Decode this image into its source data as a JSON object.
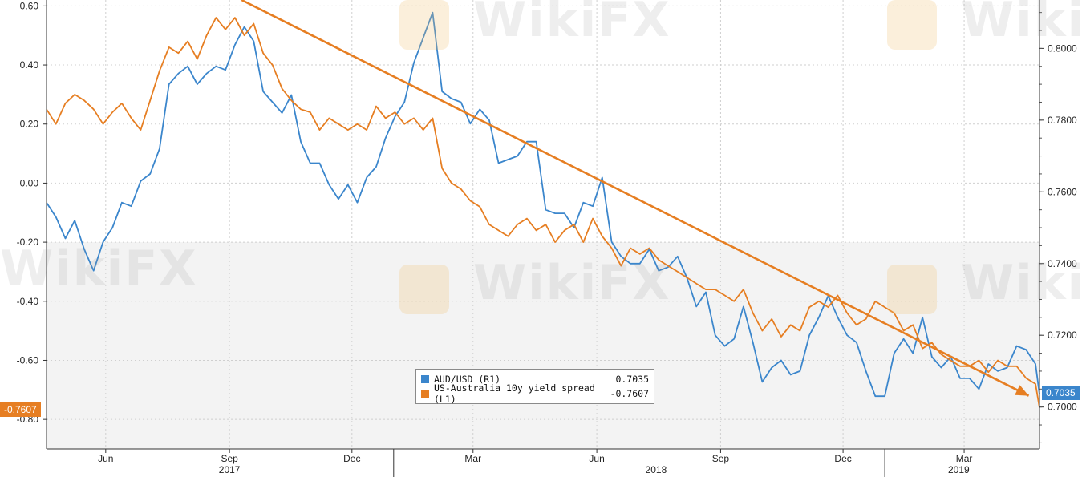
{
  "colors": {
    "aud_usd": "#3b86cc",
    "spread": "#e67e22",
    "trend": "#e67e22",
    "panel_bg": "#ffffff",
    "lower_band": "#f3f3f3",
    "grid": "#cfcfcf"
  },
  "watermark": {
    "text": "WikiFX",
    "icon": "wikifx-logo-icon"
  },
  "legend": {
    "items": [
      {
        "label": "AUD/USD (R1)",
        "value": "0.7035",
        "color": "#3b86cc"
      },
      {
        "label": "US-Australia 10y yield spread (L1)",
        "value": "-0.7607",
        "color": "#e67e22"
      }
    ]
  },
  "badges": {
    "left": "-0.7607",
    "right": "0.7035"
  },
  "chart_data": {
    "type": "line",
    "x_unit": "month",
    "x_range": [
      "2017-04-18",
      "2019-04-26"
    ],
    "x_ticks": [
      {
        "date": "2017-06-01",
        "label": "Jun"
      },
      {
        "date": "2017-09-01",
        "label": "Sep"
      },
      {
        "date": "2017-12-01",
        "label": "Dec"
      },
      {
        "date": "2018-03-01",
        "label": "Mar"
      },
      {
        "date": "2018-06-01",
        "label": "Jun"
      },
      {
        "date": "2018-09-01",
        "label": "Sep"
      },
      {
        "date": "2018-12-01",
        "label": "Dec"
      },
      {
        "date": "2019-03-01",
        "label": "Mar"
      }
    ],
    "years": [
      {
        "label": "2017",
        "date": "2017-09-01"
      },
      {
        "label": "2018",
        "date": "2018-07-15"
      },
      {
        "label": "2019",
        "date": "2019-02-25"
      }
    ],
    "year_separators": [
      "2018-01-01",
      "2019-01-01"
    ],
    "y_left": {
      "range": [
        -0.9,
        0.62
      ],
      "ticks": [
        0.6,
        0.4,
        0.2,
        0.0,
        -0.2,
        -0.4,
        -0.6,
        -0.8
      ],
      "tick_labels": [
        "0.60",
        "0.40",
        "0.20",
        "0.00",
        "-0.20",
        "-0.40",
        "-0.60",
        "-0.80"
      ]
    },
    "y_right": {
      "range": [
        0.6883,
        0.8135
      ],
      "ticks": [
        0.8,
        0.78,
        0.76,
        0.74,
        0.72,
        0.7
      ],
      "tick_labels": [
        "0.8000",
        "0.7800",
        "0.7600",
        "0.7400",
        "0.7200",
        "0.7000"
      ]
    },
    "series": [
      {
        "name": "AUD/USD (R1)",
        "axis": "right",
        "x": [
          "2017-04-18",
          "2017-04-25",
          "2017-05-02",
          "2017-05-09",
          "2017-05-16",
          "2017-05-23",
          "2017-05-30",
          "2017-06-06",
          "2017-06-13",
          "2017-06-20",
          "2017-06-27",
          "2017-07-04",
          "2017-07-11",
          "2017-07-18",
          "2017-07-25",
          "2017-08-01",
          "2017-08-08",
          "2017-08-15",
          "2017-08-22",
          "2017-08-29",
          "2017-09-05",
          "2017-09-12",
          "2017-09-19",
          "2017-09-26",
          "2017-10-03",
          "2017-10-10",
          "2017-10-17",
          "2017-10-24",
          "2017-10-31",
          "2017-11-07",
          "2017-11-14",
          "2017-11-21",
          "2017-11-28",
          "2017-12-05",
          "2017-12-12",
          "2017-12-19",
          "2017-12-26",
          "2018-01-02",
          "2018-01-09",
          "2018-01-16",
          "2018-01-23",
          "2018-01-30",
          "2018-02-06",
          "2018-02-13",
          "2018-02-20",
          "2018-02-27",
          "2018-03-06",
          "2018-03-13",
          "2018-03-20",
          "2018-03-27",
          "2018-04-03",
          "2018-04-10",
          "2018-04-17",
          "2018-04-24",
          "2018-05-01",
          "2018-05-08",
          "2018-05-15",
          "2018-05-22",
          "2018-05-29",
          "2018-06-05",
          "2018-06-12",
          "2018-06-19",
          "2018-06-26",
          "2018-07-03",
          "2018-07-10",
          "2018-07-17",
          "2018-07-24",
          "2018-07-31",
          "2018-08-07",
          "2018-08-14",
          "2018-08-21",
          "2018-08-28",
          "2018-09-04",
          "2018-09-11",
          "2018-09-18",
          "2018-09-25",
          "2018-10-02",
          "2018-10-09",
          "2018-10-16",
          "2018-10-23",
          "2018-10-30",
          "2018-11-06",
          "2018-11-13",
          "2018-11-20",
          "2018-11-27",
          "2018-12-04",
          "2018-12-11",
          "2018-12-18",
          "2018-12-25",
          "2019-01-01",
          "2019-01-08",
          "2019-01-15",
          "2019-01-22",
          "2019-01-29",
          "2019-02-05",
          "2019-02-12",
          "2019-02-19",
          "2019-02-26",
          "2019-03-05",
          "2019-03-12",
          "2019-03-19",
          "2019-03-26",
          "2019-04-02",
          "2019-04-09",
          "2019-04-16",
          "2019-04-23",
          "2019-04-26"
        ],
        "values": [
          0.757,
          0.753,
          0.747,
          0.752,
          0.744,
          0.738,
          0.746,
          0.75,
          0.757,
          0.756,
          0.763,
          0.765,
          0.772,
          0.79,
          0.793,
          0.795,
          0.79,
          0.793,
          0.795,
          0.794,
          0.801,
          0.806,
          0.802,
          0.788,
          0.785,
          0.782,
          0.787,
          0.774,
          0.768,
          0.768,
          0.762,
          0.758,
          0.762,
          0.757,
          0.764,
          0.767,
          0.775,
          0.781,
          0.785,
          0.796,
          0.803,
          0.81,
          0.788,
          0.786,
          0.785,
          0.779,
          0.783,
          0.78,
          0.768,
          0.769,
          0.77,
          0.774,
          0.774,
          0.755,
          0.754,
          0.754,
          0.75,
          0.757,
          0.756,
          0.764,
          0.746,
          0.742,
          0.74,
          0.74,
          0.744,
          0.738,
          0.739,
          0.742,
          0.736,
          0.728,
          0.732,
          0.72,
          0.717,
          0.719,
          0.728,
          0.718,
          0.707,
          0.711,
          0.713,
          0.709,
          0.71,
          0.72,
          0.725,
          0.731,
          0.725,
          0.72,
          0.718,
          0.71,
          0.703,
          0.703,
          0.715,
          0.719,
          0.715,
          0.725,
          0.714,
          0.711,
          0.714,
          0.708,
          0.708,
          0.705,
          0.712,
          0.71,
          0.711,
          0.717,
          0.716,
          0.712,
          0.7035
        ]
      },
      {
        "name": "US-Australia 10y yield spread (L1)",
        "axis": "left",
        "x": [
          "2017-04-18",
          "2017-04-25",
          "2017-05-02",
          "2017-05-09",
          "2017-05-16",
          "2017-05-23",
          "2017-05-30",
          "2017-06-06",
          "2017-06-13",
          "2017-06-20",
          "2017-06-27",
          "2017-07-04",
          "2017-07-11",
          "2017-07-18",
          "2017-07-25",
          "2017-08-01",
          "2017-08-08",
          "2017-08-15",
          "2017-08-22",
          "2017-08-29",
          "2017-09-05",
          "2017-09-12",
          "2017-09-19",
          "2017-09-26",
          "2017-10-03",
          "2017-10-10",
          "2017-10-17",
          "2017-10-24",
          "2017-10-31",
          "2017-11-07",
          "2017-11-14",
          "2017-11-21",
          "2017-11-28",
          "2017-12-05",
          "2017-12-12",
          "2017-12-19",
          "2017-12-26",
          "2018-01-02",
          "2018-01-09",
          "2018-01-16",
          "2018-01-23",
          "2018-01-30",
          "2018-02-06",
          "2018-02-13",
          "2018-02-20",
          "2018-02-27",
          "2018-03-06",
          "2018-03-13",
          "2018-03-20",
          "2018-03-27",
          "2018-04-03",
          "2018-04-10",
          "2018-04-17",
          "2018-04-24",
          "2018-05-01",
          "2018-05-08",
          "2018-05-15",
          "2018-05-22",
          "2018-05-29",
          "2018-06-05",
          "2018-06-12",
          "2018-06-19",
          "2018-06-26",
          "2018-07-03",
          "2018-07-10",
          "2018-07-17",
          "2018-07-24",
          "2018-07-31",
          "2018-08-07",
          "2018-08-14",
          "2018-08-21",
          "2018-08-28",
          "2018-09-04",
          "2018-09-11",
          "2018-09-18",
          "2018-09-25",
          "2018-10-02",
          "2018-10-09",
          "2018-10-16",
          "2018-10-23",
          "2018-10-30",
          "2018-11-06",
          "2018-11-13",
          "2018-11-20",
          "2018-11-27",
          "2018-12-04",
          "2018-12-11",
          "2018-12-18",
          "2018-12-25",
          "2019-01-01",
          "2019-01-08",
          "2019-01-15",
          "2019-01-22",
          "2019-01-29",
          "2019-02-05",
          "2019-02-12",
          "2019-02-19",
          "2019-02-26",
          "2019-03-05",
          "2019-03-12",
          "2019-03-19",
          "2019-03-26",
          "2019-04-02",
          "2019-04-09",
          "2019-04-16",
          "2019-04-23",
          "2019-04-26"
        ],
        "values": [
          0.25,
          0.2,
          0.27,
          0.3,
          0.28,
          0.25,
          0.2,
          0.24,
          0.27,
          0.22,
          0.18,
          0.28,
          0.38,
          0.46,
          0.44,
          0.48,
          0.42,
          0.5,
          0.56,
          0.52,
          0.56,
          0.5,
          0.54,
          0.44,
          0.4,
          0.32,
          0.28,
          0.25,
          0.24,
          0.18,
          0.22,
          0.2,
          0.18,
          0.2,
          0.18,
          0.26,
          0.22,
          0.24,
          0.2,
          0.22,
          0.18,
          0.22,
          0.05,
          0.0,
          -0.02,
          -0.06,
          -0.08,
          -0.14,
          -0.16,
          -0.18,
          -0.14,
          -0.12,
          -0.16,
          -0.14,
          -0.2,
          -0.16,
          -0.14,
          -0.2,
          -0.12,
          -0.18,
          -0.22,
          -0.28,
          -0.22,
          -0.24,
          -0.22,
          -0.26,
          -0.28,
          -0.3,
          -0.32,
          -0.34,
          -0.36,
          -0.36,
          -0.38,
          -0.4,
          -0.36,
          -0.44,
          -0.5,
          -0.46,
          -0.52,
          -0.48,
          -0.5,
          -0.42,
          -0.4,
          -0.42,
          -0.38,
          -0.44,
          -0.48,
          -0.46,
          -0.4,
          -0.42,
          -0.44,
          -0.5,
          -0.48,
          -0.56,
          -0.54,
          -0.58,
          -0.6,
          -0.62,
          -0.62,
          -0.6,
          -0.64,
          -0.6,
          -0.62,
          -0.62,
          -0.66,
          -0.68,
          -0.7607
        ]
      }
    ],
    "trend_line": {
      "axis": "left",
      "from": {
        "x": "2017-09-10",
        "y": 0.62
      },
      "to": {
        "x": "2019-04-18",
        "y": -0.72
      },
      "arrow": true
    }
  }
}
